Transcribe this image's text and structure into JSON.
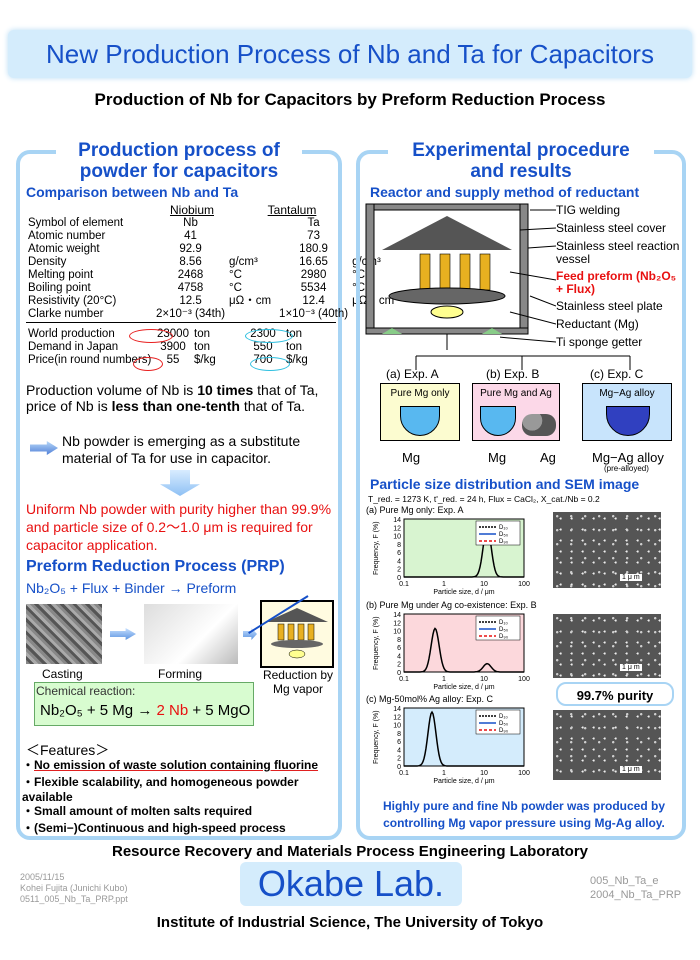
{
  "banner": "New Production Process of Nb and Ta for Capacitors",
  "subtitle": "Production of Nb for Capacitors by Preform Reduction Process",
  "left": {
    "title1": "Production process of",
    "title2": "powder for capacitors",
    "compare_heading": "Comparison between Nb and Ta",
    "col_nb": "Niobium",
    "col_ta": "Tantalum",
    "rows": [
      [
        "Symbol of element",
        "Nb",
        "",
        "Ta",
        ""
      ],
      [
        "Atomic number",
        "41",
        "",
        "73",
        ""
      ],
      [
        "Atomic weight",
        "92.9",
        "",
        "180.9",
        ""
      ],
      [
        "Density",
        "8.56",
        "g/cm³",
        "16.65",
        "g/cm³"
      ],
      [
        "Melting point",
        "2468",
        "°C",
        "2980",
        "°C"
      ],
      [
        "Boiling point",
        "4758",
        "°C",
        "5534",
        "°C"
      ],
      [
        "Resistivity (20°C)",
        "12.5",
        "μΩ・cm",
        "12.4",
        "μΩ・cm"
      ],
      [
        "Clarke number",
        "2×10⁻³ (34th)",
        "",
        "1×10⁻³ (40th)",
        ""
      ]
    ],
    "rows2": [
      [
        "World production",
        "23000",
        "ton",
        "2300",
        "ton"
      ],
      [
        "Demand in Japan",
        "3900",
        "ton",
        "550",
        "ton"
      ],
      [
        "Price(in round numbers)",
        "55",
        "$/kg",
        "700",
        "$/kg"
      ]
    ],
    "para1a": "Production volume of Nb is ",
    "para1b": "10 times",
    "para1c": " that of Ta, price of Nb is ",
    "para1d": "less than one-tenth",
    "para1e": " that of Ta.",
    "para2": "Nb powder is emerging as a substitute material of Ta for use in capacitor.",
    "para3": "Uniform Nb powder with purity higher than 99.9% and particle size of 0.2～1.0 μm is required for capacitor application.",
    "prp_heading": "Preform Reduction Process (PRP)",
    "prp_eq": "Nb₂O₅ + Flux + Binder → Preform",
    "casting": "Casting",
    "forming": "Forming",
    "reduction1": "Reduction by",
    "reduction2": "Mg vapor",
    "reaction_label": "Chemical reaction:",
    "reaction_a": "Nb₂O₅ + 5 Mg → ",
    "reaction_b": "2 Nb",
    "reaction_c": " + 5 MgO",
    "features_heading": "＜Features＞",
    "features": [
      "No emission of waste solution containing fluorine",
      "Flexible scalability, and homogeneous powder available",
      "Small amount of molten salts required",
      "(Semi−)Continuous and high-speed process"
    ]
  },
  "right": {
    "title1": "Experimental procedure",
    "title2": "and results",
    "reactor_heading": "Reactor and supply method of reductant",
    "labels": [
      "TIG welding",
      "Stainless steel cover",
      "Stainless steel reaction vessel",
      "Feed preform (Nb₂O₅ + Flux)",
      "Stainless steel plate",
      "Reductant (Mg)",
      "Ti sponge getter"
    ],
    "exps": [
      "(a) Exp. A",
      "(b) Exp. B",
      "(c) Exp. C"
    ],
    "exp_boxes": [
      "Pure Mg only",
      "Pure Mg and Ag",
      "Mg−Ag alloy"
    ],
    "exp_mats": [
      "Mg",
      "Mg",
      "Ag",
      "Mg−Ag alloy"
    ],
    "preallo": "(pre-alloyed)",
    "psd_heading": "Particle size distribution and SEM image",
    "conditions": "T_red. = 1273 K, t'_red. = 24 h, Flux = CaCl₂, X_cat./Nb = 0.2",
    "plot_titles": [
      "(a) Pure Mg only: Exp. A",
      "(b) Pure Mg under Ag co-existence: Exp. B",
      "(c) Mg-50mol% Ag alloy: Exp. C"
    ],
    "ylabel": "Frequency, F (%)",
    "xlabel": "Particle size,  d / μm",
    "legend": [
      "D₁₀",
      "D₅₀",
      "D₉₀"
    ],
    "scale": "1 μ m",
    "purity": "99.7% purity",
    "conclusion": "Highly pure and fine Nb powder was produced by controlling Mg vapor pressure using Mg-Ag alloy."
  },
  "footer": {
    "lab": "Resource Recovery and Materials Process Engineering Laboratory",
    "date": "2005/11/15",
    "author": "Kohei Fujita (Junichi Kubo)",
    "file": "0511_005_Nb_Ta_PRP.ppt",
    "okabe": "Okabe Lab.",
    "code1": "005_Nb_Ta_e",
    "code2": "2004_Nb_Ta_PRP",
    "institute": "Institute of Industrial Science, The University of Tokyo"
  },
  "colors": {
    "accent": "#1650c8",
    "panel_border": "#a8d4f4",
    "banner_bg": "#d4ecfc",
    "red": "#e81010"
  },
  "chart_data": [
    {
      "type": "line",
      "title": "(a) Pure Mg only: Exp. A",
      "xlabel": "Particle size, d / μm",
      "ylabel": "Frequency, F (%)",
      "xlim": [
        0.1,
        100
      ],
      "ylim": [
        0,
        14
      ],
      "log_x": true,
      "peaks": [
        {
          "x": 12,
          "y": 12
        }
      ]
    },
    {
      "type": "line",
      "title": "(b) Pure Mg under Ag co-existence: Exp. B",
      "xlabel": "Particle size, d / μm",
      "ylabel": "Frequency, F (%)",
      "xlim": [
        0.1,
        100
      ],
      "ylim": [
        0,
        14
      ],
      "log_x": true,
      "peaks": [
        {
          "x": 0.6,
          "y": 10.5
        },
        {
          "x": 12,
          "y": 2
        }
      ]
    },
    {
      "type": "line",
      "title": "(c) Mg-50mol% Ag alloy: Exp. C",
      "xlabel": "Particle size, d / μm",
      "ylabel": "Frequency, F (%)",
      "xlim": [
        0.1,
        100
      ],
      "ylim": [
        0,
        14
      ],
      "log_x": true,
      "peaks": [
        {
          "x": 0.5,
          "y": 13
        }
      ]
    }
  ]
}
